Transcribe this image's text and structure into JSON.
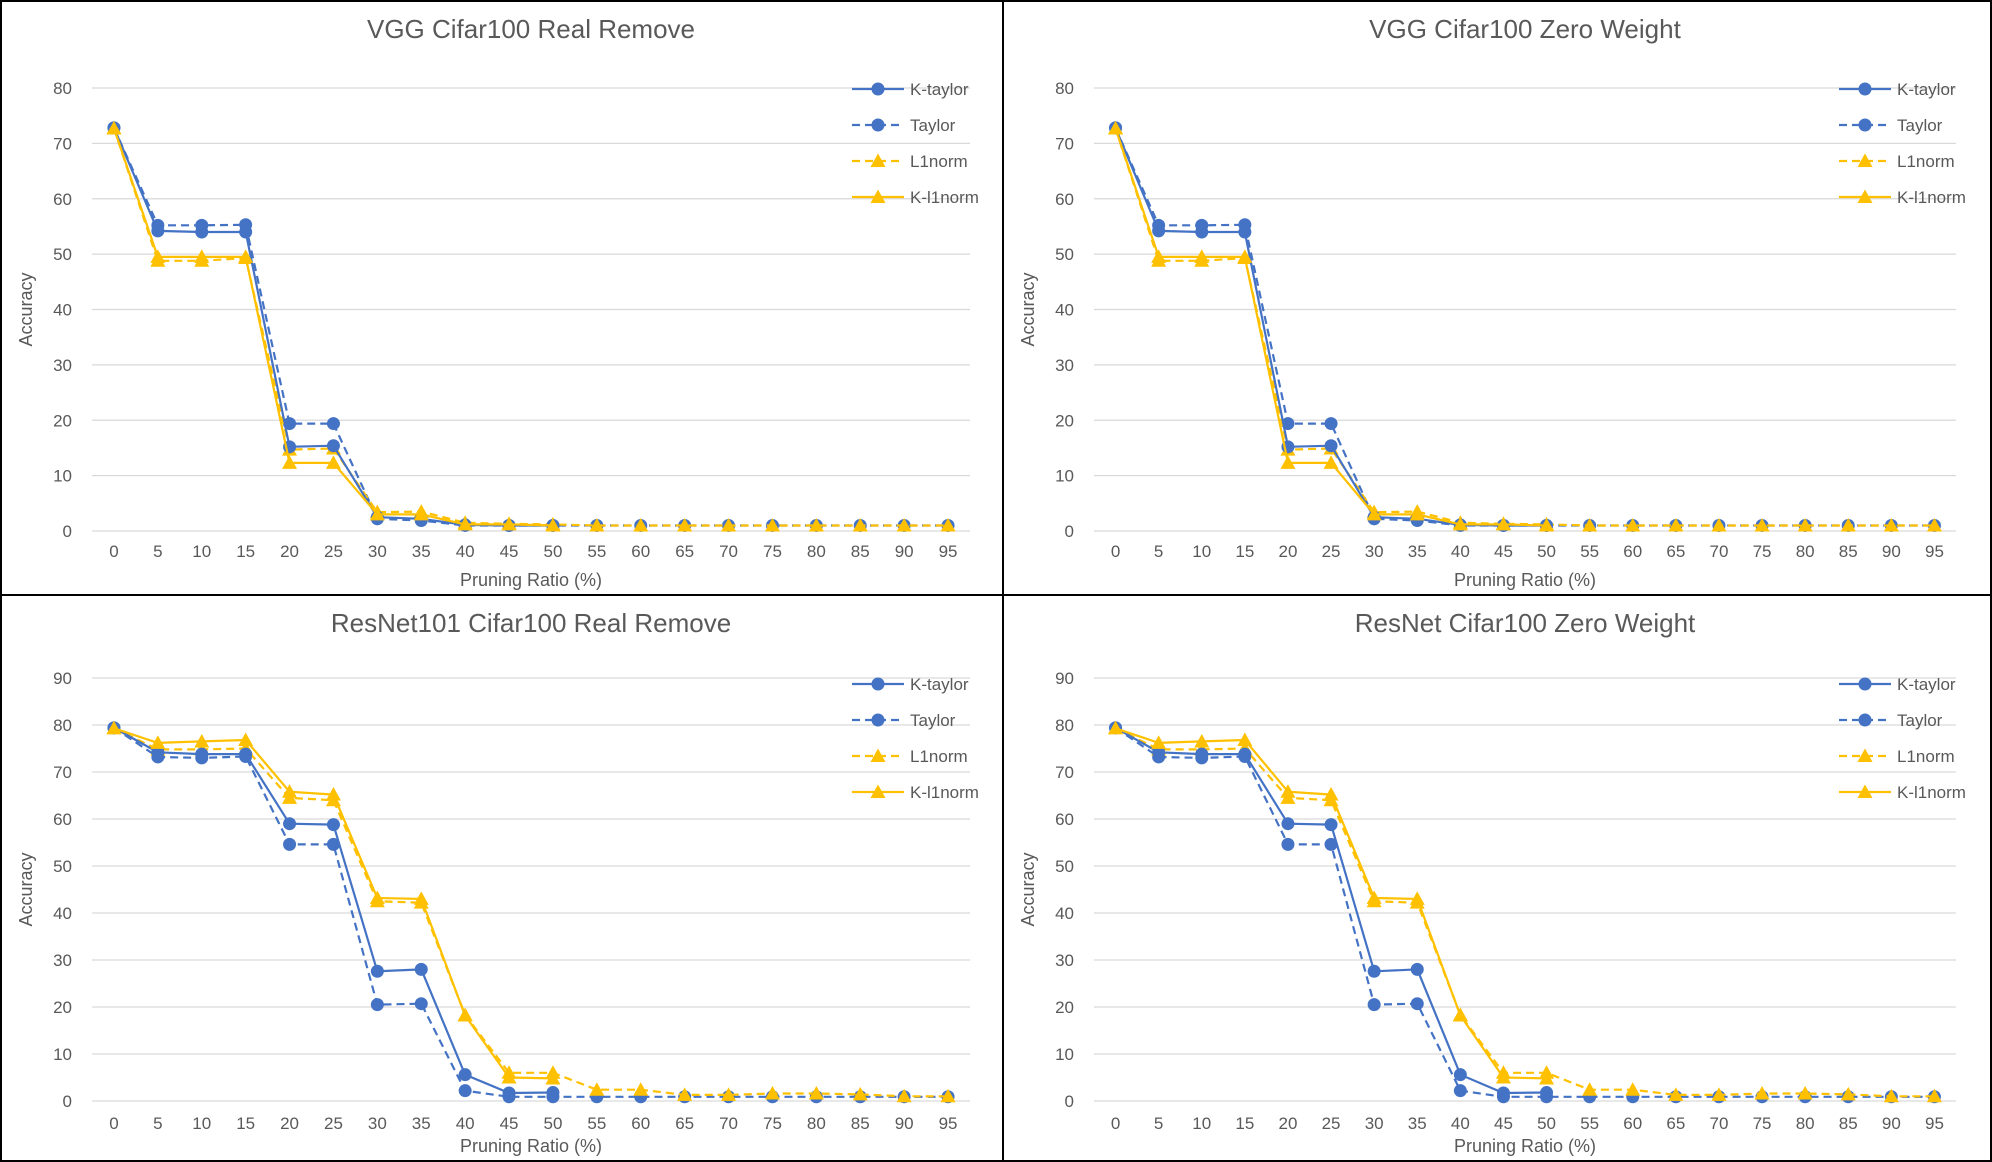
{
  "colors": {
    "blue": "#4472C4",
    "gold": "#FFC000",
    "grid": "#D9D9D9",
    "text": "#595959"
  },
  "chart_data": [
    {
      "type": "line",
      "title": "VGG Cifar100 Real Remove",
      "xlabel": "Pruning Ratio (%)",
      "ylabel": "Accuracy",
      "ylim": [
        0,
        80
      ],
      "ystep": 10,
      "x": [
        0,
        5,
        10,
        15,
        20,
        25,
        30,
        35,
        40,
        45,
        50,
        55,
        60,
        65,
        70,
        75,
        80,
        85,
        90,
        95
      ],
      "grid": true,
      "legend": "top-right",
      "series": [
        {
          "name": "K-taylor",
          "color": "#4472C4",
          "style": "solid",
          "marker": "circle",
          "values": [
            72.8,
            54.2,
            54,
            54,
            15.2,
            15.4,
            2.5,
            2.2,
            1.1,
            1,
            1,
            null,
            null,
            null,
            null,
            null,
            null,
            null,
            null,
            null
          ]
        },
        {
          "name": "Taylor",
          "color": "#4472C4",
          "style": "dashed",
          "marker": "circle",
          "values": [
            72.8,
            55.2,
            55.2,
            55.3,
            19.4,
            19.4,
            2.2,
            1.9,
            1,
            1,
            1,
            1,
            1,
            1,
            1,
            1,
            1,
            1,
            1,
            1
          ]
        },
        {
          "name": "L1norm",
          "color": "#FFC000",
          "style": "dashed",
          "marker": "triangle",
          "values": [
            72.7,
            48.8,
            48.8,
            49.3,
            14.7,
            14.9,
            3.4,
            3.5,
            1.5,
            1.3,
            1.2,
            1,
            1,
            1,
            1,
            1,
            1,
            1,
            1,
            1
          ]
        },
        {
          "name": "K-l1norm",
          "color": "#FFC000",
          "style": "solid",
          "marker": "triangle",
          "values": [
            72.7,
            49.5,
            49.5,
            49.5,
            12.3,
            12.3,
            3,
            3,
            1.2,
            1.2,
            1,
            null,
            null,
            null,
            null,
            null,
            null,
            null,
            null,
            null
          ]
        }
      ]
    },
    {
      "type": "line",
      "title": "VGG Cifar100 Zero Weight",
      "xlabel": "Pruning Ratio (%)",
      "ylabel": "Accuracy",
      "ylim": [
        0,
        80
      ],
      "ystep": 10,
      "x": [
        0,
        5,
        10,
        15,
        20,
        25,
        30,
        35,
        40,
        45,
        50,
        55,
        60,
        65,
        70,
        75,
        80,
        85,
        90,
        95
      ],
      "grid": true,
      "legend": "top-right",
      "series": [
        {
          "name": "K-taylor",
          "color": "#4472C4",
          "style": "solid",
          "marker": "circle",
          "values": [
            72.8,
            54.2,
            54,
            54,
            15.2,
            15.4,
            2.5,
            2.2,
            1.1,
            1,
            1,
            null,
            null,
            null,
            null,
            null,
            null,
            null,
            null,
            null
          ]
        },
        {
          "name": "Taylor",
          "color": "#4472C4",
          "style": "dashed",
          "marker": "circle",
          "values": [
            72.8,
            55.2,
            55.2,
            55.3,
            19.4,
            19.4,
            2.2,
            1.9,
            1,
            1,
            1,
            1,
            1,
            1,
            1,
            1,
            1,
            1,
            1,
            1
          ]
        },
        {
          "name": "L1norm",
          "color": "#FFC000",
          "style": "dashed",
          "marker": "triangle",
          "values": [
            72.7,
            48.8,
            48.8,
            49.3,
            14.7,
            14.9,
            3.4,
            3.5,
            1.5,
            1.3,
            1.2,
            1,
            1,
            1,
            1,
            1,
            1,
            1,
            1,
            1
          ]
        },
        {
          "name": "K-l1norm",
          "color": "#FFC000",
          "style": "solid",
          "marker": "triangle",
          "values": [
            72.7,
            49.5,
            49.5,
            49.5,
            12.3,
            12.3,
            3,
            3,
            1.2,
            1.2,
            1,
            null,
            null,
            null,
            null,
            null,
            null,
            null,
            null,
            null
          ]
        }
      ]
    },
    {
      "type": "line",
      "title": "ResNet101 Cifar100 Real Remove",
      "xlabel": "Pruning Ratio (%)",
      "ylabel": "Accuracy",
      "ylim": [
        0,
        90
      ],
      "ystep": 10,
      "x": [
        0,
        5,
        10,
        15,
        20,
        25,
        30,
        35,
        40,
        45,
        50,
        55,
        60,
        65,
        70,
        75,
        80,
        85,
        90,
        95
      ],
      "grid": true,
      "legend": "top-right",
      "series": [
        {
          "name": "K-taylor",
          "color": "#4472C4",
          "style": "solid",
          "marker": "circle",
          "values": [
            79.4,
            74.2,
            73.8,
            73.8,
            59,
            58.8,
            27.6,
            28,
            5.6,
            1.7,
            1.8,
            null,
            null,
            null,
            null,
            null,
            null,
            null,
            null,
            null
          ]
        },
        {
          "name": "Taylor",
          "color": "#4472C4",
          "style": "dashed",
          "marker": "circle",
          "values": [
            79.4,
            73.2,
            73,
            73.3,
            54.6,
            54.6,
            20.5,
            20.7,
            2.2,
            0.9,
            0.9,
            0.9,
            0.9,
            0.9,
            0.9,
            0.9,
            0.9,
            0.9,
            0.9,
            0.9
          ]
        },
        {
          "name": "L1norm",
          "color": "#FFC000",
          "style": "dashed",
          "marker": "triangle",
          "values": [
            79.3,
            74.8,
            74.8,
            75,
            64.5,
            64,
            42.5,
            42.2,
            18.3,
            6,
            6,
            2.4,
            2.4,
            1.3,
            1.3,
            1.6,
            1.6,
            1.4,
            1,
            1
          ]
        },
        {
          "name": "K-l1norm",
          "color": "#FFC000",
          "style": "solid",
          "marker": "triangle",
          "values": [
            79.3,
            76.2,
            76.5,
            76.8,
            65.8,
            65.2,
            43.2,
            43,
            18.2,
            5,
            4.8,
            null,
            null,
            null,
            null,
            null,
            null,
            null,
            null,
            null
          ]
        }
      ]
    },
    {
      "type": "line",
      "title": "ResNet Cifar100 Zero Weight",
      "xlabel": "Pruning Ratio (%)",
      "ylabel": "Accuracy",
      "ylim": [
        0,
        90
      ],
      "ystep": 10,
      "x": [
        0,
        5,
        10,
        15,
        20,
        25,
        30,
        35,
        40,
        45,
        50,
        55,
        60,
        65,
        70,
        75,
        80,
        85,
        90,
        95
      ],
      "grid": true,
      "legend": "top-right",
      "series": [
        {
          "name": "K-taylor",
          "color": "#4472C4",
          "style": "solid",
          "marker": "circle",
          "values": [
            79.4,
            74.2,
            73.8,
            73.8,
            59,
            58.8,
            27.6,
            28,
            5.6,
            1.7,
            1.8,
            null,
            null,
            null,
            null,
            null,
            null,
            null,
            null,
            null
          ]
        },
        {
          "name": "Taylor",
          "color": "#4472C4",
          "style": "dashed",
          "marker": "circle",
          "values": [
            79.4,
            73.2,
            73,
            73.3,
            54.6,
            54.6,
            20.5,
            20.7,
            2.2,
            0.9,
            0.9,
            0.9,
            0.9,
            0.9,
            0.9,
            0.9,
            0.9,
            0.9,
            0.9,
            0.9
          ]
        },
        {
          "name": "L1norm",
          "color": "#FFC000",
          "style": "dashed",
          "marker": "triangle",
          "values": [
            79.3,
            74.8,
            74.8,
            75,
            64.5,
            64,
            42.5,
            42.2,
            18.3,
            6,
            6,
            2.4,
            2.4,
            1.3,
            1.3,
            1.6,
            1.6,
            1.4,
            1,
            1
          ]
        },
        {
          "name": "K-l1norm",
          "color": "#FFC000",
          "style": "solid",
          "marker": "triangle",
          "values": [
            79.3,
            76.2,
            76.5,
            76.8,
            65.8,
            65.2,
            43.2,
            43,
            18.2,
            5,
            4.8,
            null,
            null,
            null,
            null,
            null,
            null,
            null,
            null,
            null
          ]
        }
      ]
    }
  ]
}
